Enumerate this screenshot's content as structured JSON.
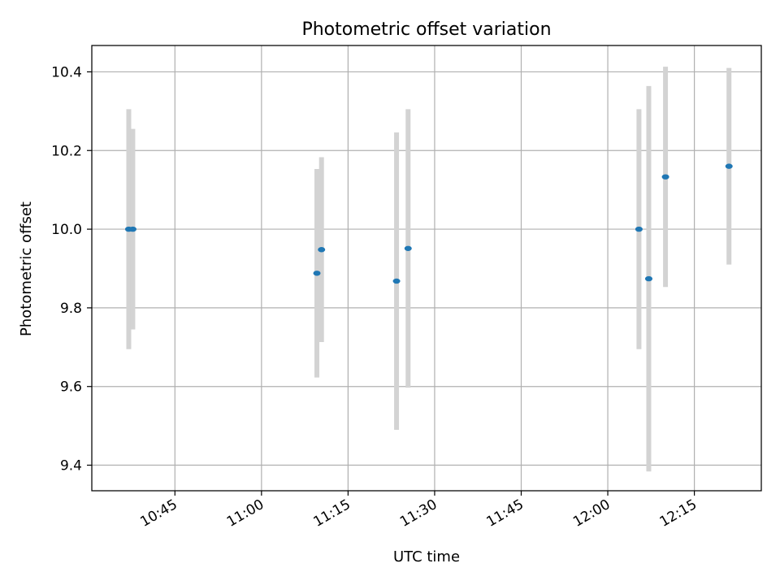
{
  "chart_data": {
    "type": "scatter",
    "title": "Photometric offset variation",
    "xlabel": "UTC time",
    "ylabel": "Photometric offset",
    "x_ticks": [
      "10:45",
      "11:00",
      "11:15",
      "11:30",
      "11:45",
      "12:00",
      "12:15"
    ],
    "y_ticks": [
      "9.4",
      "9.6",
      "9.8",
      "10.0",
      "10.2",
      "10.4"
    ],
    "xlim": [
      "10:30.6",
      "12:26.6"
    ],
    "ylim": [
      9.335,
      10.467
    ],
    "grid": true,
    "colors": {
      "point": "#1f77b4",
      "errorbar": "#d3d3d3",
      "grid": "#b0b0b0"
    },
    "points": [
      {
        "time": "10:37.0",
        "value": 10.0,
        "err": 0.305
      },
      {
        "time": "10:37.7",
        "value": 10.0,
        "err": 0.255
      },
      {
        "time": "11:09.6",
        "value": 9.888,
        "err": 0.265
      },
      {
        "time": "11:10.4",
        "value": 9.948,
        "err": 0.235
      },
      {
        "time": "11:23.4",
        "value": 9.868,
        "err": 0.378
      },
      {
        "time": "11:25.4",
        "value": 9.951,
        "err": 0.354
      },
      {
        "time": "12:05.4",
        "value": 10.0,
        "err": 0.305
      },
      {
        "time": "12:07.1",
        "value": 9.874,
        "err": 0.49
      },
      {
        "time": "12:10.0",
        "value": 10.133,
        "err": 0.28
      },
      {
        "time": "12:21.0",
        "value": 10.16,
        "err": 0.25
      }
    ]
  }
}
